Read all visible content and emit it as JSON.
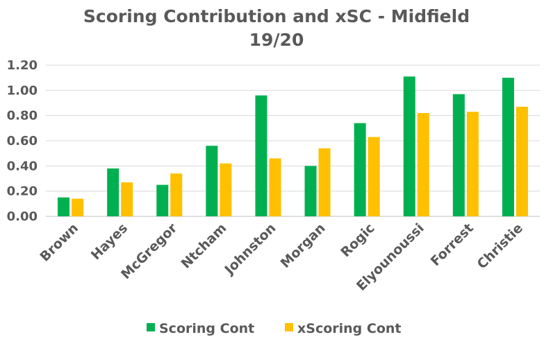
{
  "chart_data": {
    "type": "bar",
    "title": "Scoring Contribution and xSC - Midfield",
    "subtitle": "19/20",
    "xlabel": "",
    "ylabel": "",
    "categories": [
      "Brown",
      "Hayes",
      "McGregor",
      "Ntcham",
      "Johnston",
      "Morgan",
      "Rogic",
      "Elyounoussi",
      "Forrest",
      "Christie"
    ],
    "series": [
      {
        "name": "Scoring Cont",
        "color": "#00b050",
        "values": [
          0.15,
          0.38,
          0.25,
          0.56,
          0.96,
          0.4,
          0.74,
          1.11,
          0.97,
          1.1
        ]
      },
      {
        "name": "xScoring Cont",
        "color": "#ffc000",
        "values": [
          0.14,
          0.27,
          0.34,
          0.42,
          0.46,
          0.54,
          0.63,
          0.82,
          0.83,
          0.87
        ]
      }
    ],
    "ylim": [
      0,
      1.2
    ],
    "yticks": [
      "0.00",
      "0.20",
      "0.40",
      "0.60",
      "0.80",
      "1.00",
      "1.20"
    ],
    "grid": true,
    "legend": "bottom"
  }
}
